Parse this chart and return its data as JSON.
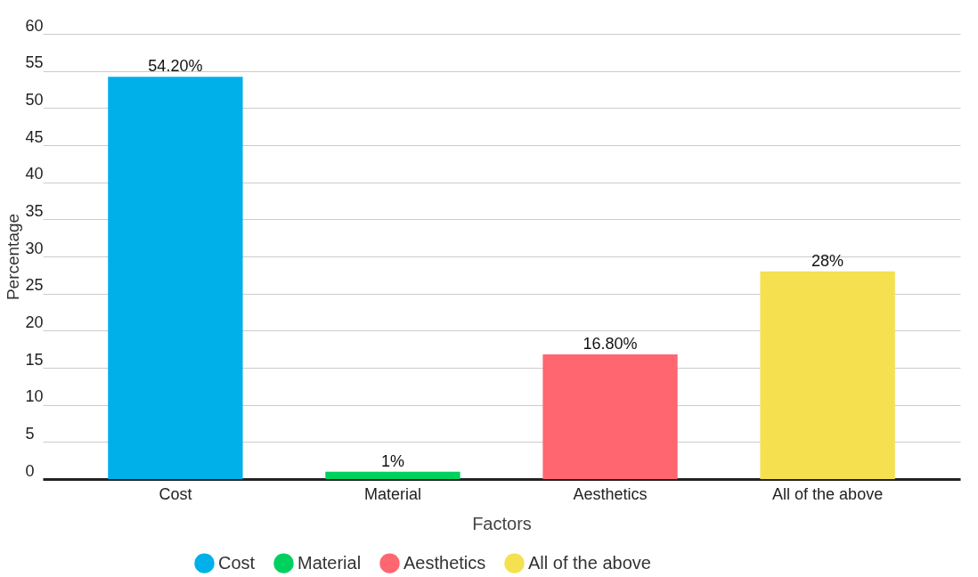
{
  "chart_data": {
    "type": "bar",
    "xlabel": "Factors",
    "ylabel": "Percentage",
    "categories": [
      "Cost",
      "Material",
      "Aesthetics",
      "All of the above"
    ],
    "series": [
      {
        "name": "Cost",
        "color": "#00b0e8",
        "values": [
          54.2,
          null,
          null,
          null
        ],
        "value_labels": [
          "54.20%",
          null,
          null,
          null
        ]
      },
      {
        "name": "Material",
        "color": "#00d15e",
        "values": [
          null,
          1,
          null,
          null
        ],
        "value_labels": [
          null,
          "1%",
          null,
          null
        ]
      },
      {
        "name": "Aesthetics",
        "color": "#ff6670",
        "values": [
          null,
          null,
          16.8,
          null
        ],
        "value_labels": [
          null,
          null,
          "16.80%",
          null
        ]
      },
      {
        "name": "All of the above",
        "color": "#f5e050",
        "values": [
          null,
          null,
          null,
          28
        ],
        "value_labels": [
          null,
          null,
          null,
          "28%"
        ]
      }
    ],
    "ylim": [
      0,
      60
    ],
    "yticks": [
      0,
      5,
      10,
      15,
      20,
      25,
      30,
      35,
      40,
      45,
      50,
      55,
      60
    ],
    "grid": "y",
    "legend": "bottom"
  }
}
